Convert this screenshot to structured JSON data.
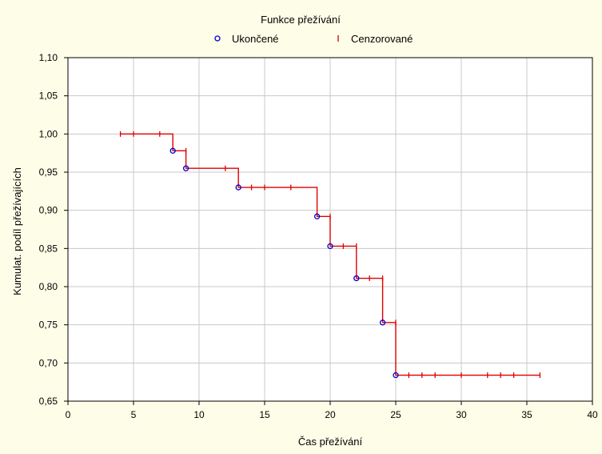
{
  "chart_data": {
    "type": "line",
    "title": "Funkce přežívání",
    "xlabel": "Čas přežívání",
    "ylabel": "Kumulat. podíl přežívajících",
    "xlim": [
      0,
      40
    ],
    "ylim": [
      0.65,
      1.1
    ],
    "x_ticks": [
      0,
      5,
      10,
      15,
      20,
      25,
      30,
      35,
      40
    ],
    "x_tick_labels": [
      "0",
      "5",
      "10",
      "15",
      "20",
      "25",
      "30",
      "35",
      "40"
    ],
    "y_ticks": [
      0.65,
      0.7,
      0.75,
      0.8,
      0.85,
      0.9,
      0.95,
      1.0,
      1.05,
      1.1
    ],
    "y_tick_labels": [
      "0,65",
      "0,70",
      "0,75",
      "0,80",
      "0,85",
      "0,90",
      "0,95",
      "1,00",
      "1,05",
      "1,10"
    ],
    "grid": true,
    "legend_position": "top-center",
    "legend": [
      {
        "label": "Ukončené",
        "marker": "circle",
        "color": "#0000CC"
      },
      {
        "label": "Cenzorované",
        "marker": "tick",
        "color": "#CC0000"
      }
    ],
    "step_color": "#E00000",
    "grid_color": "#C8C8C8",
    "survival_steps": [
      {
        "x": 4,
        "y": 1.0
      },
      {
        "x": 8,
        "y": 0.978
      },
      {
        "x": 9,
        "y": 0.955
      },
      {
        "x": 13,
        "y": 0.93
      },
      {
        "x": 19,
        "y": 0.892
      },
      {
        "x": 20,
        "y": 0.853
      },
      {
        "x": 22,
        "y": 0.811
      },
      {
        "x": 24,
        "y": 0.753
      },
      {
        "x": 25,
        "y": 0.684
      },
      {
        "x": 36,
        "y": 0.684
      }
    ],
    "events": [
      {
        "x": 8,
        "y": 0.978
      },
      {
        "x": 9,
        "y": 0.955
      },
      {
        "x": 13,
        "y": 0.93
      },
      {
        "x": 19,
        "y": 0.892
      },
      {
        "x": 20,
        "y": 0.853
      },
      {
        "x": 22,
        "y": 0.811
      },
      {
        "x": 24,
        "y": 0.753
      },
      {
        "x": 25,
        "y": 0.684
      }
    ],
    "censored": [
      {
        "x": 4,
        "y": 1.0
      },
      {
        "x": 5,
        "y": 1.0
      },
      {
        "x": 7,
        "y": 1.0
      },
      {
        "x": 9,
        "y": 0.978
      },
      {
        "x": 12,
        "y": 0.955
      },
      {
        "x": 14,
        "y": 0.93
      },
      {
        "x": 15,
        "y": 0.93
      },
      {
        "x": 17,
        "y": 0.93
      },
      {
        "x": 20,
        "y": 0.892
      },
      {
        "x": 21,
        "y": 0.853
      },
      {
        "x": 22,
        "y": 0.853
      },
      {
        "x": 23,
        "y": 0.811
      },
      {
        "x": 24,
        "y": 0.811
      },
      {
        "x": 25,
        "y": 0.753
      },
      {
        "x": 26,
        "y": 0.684
      },
      {
        "x": 27,
        "y": 0.684
      },
      {
        "x": 28,
        "y": 0.684
      },
      {
        "x": 30,
        "y": 0.684
      },
      {
        "x": 32,
        "y": 0.684
      },
      {
        "x": 33,
        "y": 0.684
      },
      {
        "x": 34,
        "y": 0.684
      },
      {
        "x": 36,
        "y": 0.684
      }
    ]
  }
}
